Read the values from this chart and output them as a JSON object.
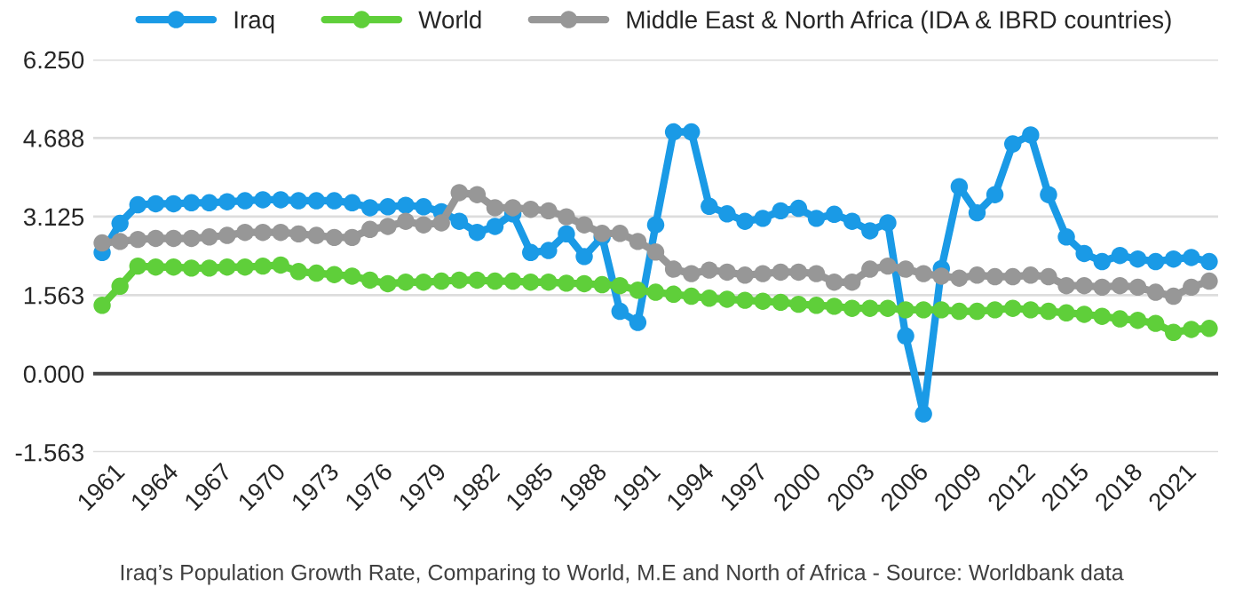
{
  "chart_data": {
    "type": "line",
    "x": [
      1961,
      1962,
      1963,
      1964,
      1965,
      1966,
      1967,
      1968,
      1969,
      1970,
      1971,
      1972,
      1973,
      1974,
      1975,
      1976,
      1977,
      1978,
      1979,
      1980,
      1981,
      1982,
      1983,
      1984,
      1985,
      1986,
      1987,
      1988,
      1989,
      1990,
      1991,
      1992,
      1993,
      1994,
      1995,
      1996,
      1997,
      1998,
      1999,
      2000,
      2001,
      2002,
      2003,
      2004,
      2005,
      2006,
      2007,
      2008,
      2009,
      2010,
      2011,
      2012,
      2013,
      2014,
      2015,
      2016,
      2017,
      2018,
      2019,
      2020,
      2021,
      2022,
      2023
    ],
    "series": [
      {
        "name": "Iraq",
        "color": "#1a9ae6",
        "values": [
          2.41,
          2.99,
          3.36,
          3.38,
          3.38,
          3.4,
          3.4,
          3.42,
          3.44,
          3.46,
          3.46,
          3.44,
          3.44,
          3.44,
          3.4,
          3.3,
          3.32,
          3.35,
          3.32,
          3.22,
          3.03,
          2.81,
          2.93,
          3.18,
          2.41,
          2.45,
          2.78,
          2.33,
          2.72,
          1.24,
          1.02,
          2.96,
          4.81,
          4.81,
          3.33,
          3.18,
          3.03,
          3.09,
          3.24,
          3.29,
          3.09,
          3.17,
          3.03,
          2.84,
          3.0,
          0.75,
          -0.8,
          2.09,
          3.72,
          3.2,
          3.56,
          4.57,
          4.75,
          3.56,
          2.72,
          2.39,
          2.23,
          2.35,
          2.28,
          2.23,
          2.28,
          2.31,
          2.23
        ]
      },
      {
        "name": "World",
        "color": "#5fcf3a",
        "values": [
          1.36,
          1.74,
          2.14,
          2.12,
          2.12,
          2.1,
          2.1,
          2.12,
          2.12,
          2.14,
          2.16,
          2.03,
          2.0,
          1.97,
          1.94,
          1.86,
          1.79,
          1.82,
          1.82,
          1.84,
          1.86,
          1.86,
          1.84,
          1.84,
          1.82,
          1.82,
          1.8,
          1.79,
          1.77,
          1.75,
          1.66,
          1.62,
          1.58,
          1.54,
          1.5,
          1.48,
          1.46,
          1.44,
          1.42,
          1.38,
          1.36,
          1.34,
          1.3,
          1.3,
          1.3,
          1.27,
          1.27,
          1.27,
          1.24,
          1.24,
          1.27,
          1.3,
          1.27,
          1.24,
          1.21,
          1.18,
          1.14,
          1.09,
          1.06,
          1.0,
          0.82,
          0.88,
          0.9
        ]
      },
      {
        "name": "Middle East & North Africa (IDA & IBRD countries)",
        "color": "#979797",
        "values": [
          2.6,
          2.63,
          2.67,
          2.69,
          2.69,
          2.69,
          2.72,
          2.75,
          2.81,
          2.81,
          2.81,
          2.78,
          2.75,
          2.71,
          2.71,
          2.87,
          2.93,
          3.03,
          2.96,
          3.0,
          3.6,
          3.56,
          3.3,
          3.3,
          3.27,
          3.24,
          3.12,
          2.96,
          2.79,
          2.79,
          2.63,
          2.42,
          2.08,
          1.99,
          2.06,
          2.02,
          1.96,
          1.99,
          2.02,
          2.02,
          1.99,
          1.82,
          1.82,
          2.08,
          2.14,
          2.08,
          1.99,
          1.94,
          1.9,
          1.96,
          1.93,
          1.93,
          1.96,
          1.93,
          1.75,
          1.75,
          1.72,
          1.75,
          1.72,
          1.62,
          1.54,
          1.72,
          1.84
        ]
      }
    ],
    "xlim": [
      1960.5,
      2023.5
    ],
    "xticks": [
      1961,
      1964,
      1967,
      1970,
      1973,
      1976,
      1979,
      1982,
      1985,
      1988,
      1991,
      1994,
      1997,
      2000,
      2003,
      2006,
      2009,
      2012,
      2015,
      2018,
      2021
    ],
    "ylim": [
      -1.563,
      6.25
    ],
    "yticks": [
      {
        "value": -1.563,
        "label": "-1.563"
      },
      {
        "value": 0,
        "label": "0.000"
      },
      {
        "value": 1.563,
        "label": "1.563"
      },
      {
        "value": 3.125,
        "label": "3.125"
      },
      {
        "value": 4.688,
        "label": "4.688"
      },
      {
        "value": 6.25,
        "label": "6.250"
      }
    ],
    "ref_lines": [
      {
        "axis": "y",
        "value": 0,
        "label": null,
        "color": "#444444"
      }
    ],
    "grid": "y",
    "legend": "top",
    "marker": "circle",
    "line_style": "solid",
    "annotations": [
      "Iraq’s Population Growth Rate, Comparing to World, M.E and North of Africa - Source: Worldbank data"
    ]
  }
}
